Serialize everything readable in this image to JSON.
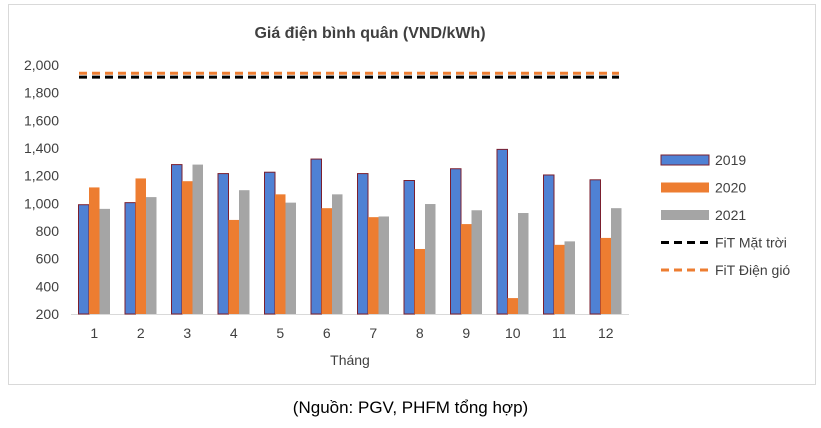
{
  "chart_data": {
    "type": "bar",
    "title": "Giá điện bình quân (VND/kWh)",
    "xlabel": "Tháng",
    "ylabel": "",
    "categories": [
      "1",
      "2",
      "3",
      "4",
      "5",
      "6",
      "7",
      "8",
      "9",
      "10",
      "11",
      "12"
    ],
    "ylim": [
      200,
      2000
    ],
    "yticks": [
      "200",
      "400",
      "600",
      "800",
      "1,000",
      "1,200",
      "1,400",
      "1,600",
      "1,800",
      "2,000"
    ],
    "grid": false,
    "legend_position": "right",
    "series": [
      {
        "name": "2019",
        "type": "bar",
        "color": "#4f81d4",
        "border": "#7b1f2e",
        "values": [
          990,
          1005,
          1280,
          1215,
          1225,
          1320,
          1215,
          1165,
          1250,
          1390,
          1205,
          1170
        ]
      },
      {
        "name": "2020",
        "type": "bar",
        "color": "#ed7d31",
        "values": [
          1115,
          1180,
          1160,
          880,
          1065,
          965,
          900,
          670,
          850,
          315,
          700,
          750
        ]
      },
      {
        "name": "2021",
        "type": "bar",
        "color": "#a5a5a5",
        "values": [
          960,
          1045,
          1280,
          1095,
          1005,
          1065,
          905,
          995,
          950,
          930,
          725,
          965
        ]
      },
      {
        "name": "FiT Mặt trời",
        "type": "line",
        "style": "dashed",
        "color": "#000000",
        "value": 1912
      },
      {
        "name": "FiT Điện gió",
        "type": "line",
        "style": "dashed",
        "color": "#ed7d31",
        "value": 1940
      }
    ]
  },
  "source_note": "(Nguồn: PGV, PHFM tổng hợp)"
}
